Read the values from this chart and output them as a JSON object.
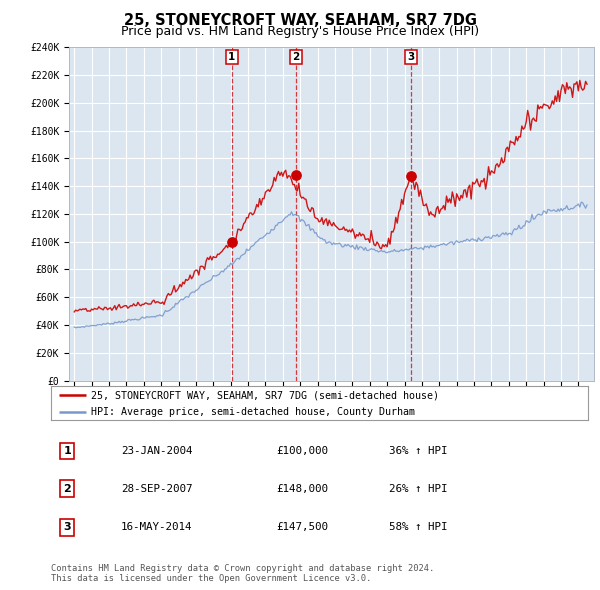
{
  "title": "25, STONEYCROFT WAY, SEAHAM, SR7 7DG",
  "subtitle": "Price paid vs. HM Land Registry's House Price Index (HPI)",
  "plot_bg_color": "#dce6f0",
  "ylim": [
    0,
    240000
  ],
  "yticks": [
    0,
    20000,
    40000,
    60000,
    80000,
    100000,
    120000,
    140000,
    160000,
    180000,
    200000,
    220000,
    240000
  ],
  "red_color": "#cc0000",
  "blue_color": "#7799cc",
  "sale_dates": [
    2004.07,
    2007.75,
    2014.38
  ],
  "sale_prices": [
    100000,
    148000,
    147500
  ],
  "sale_labels": [
    "1",
    "2",
    "3"
  ],
  "legend_line1": "25, STONEYCROFT WAY, SEAHAM, SR7 7DG (semi-detached house)",
  "legend_line2": "HPI: Average price, semi-detached house, County Durham",
  "table_rows": [
    [
      "1",
      "23-JAN-2004",
      "£100,000",
      "36% ↑ HPI"
    ],
    [
      "2",
      "28-SEP-2007",
      "£148,000",
      "26% ↑ HPI"
    ],
    [
      "3",
      "16-MAY-2014",
      "£147,500",
      "58% ↑ HPI"
    ]
  ],
  "footnote": "Contains HM Land Registry data © Crown copyright and database right 2024.\nThis data is licensed under the Open Government Licence v3.0.",
  "title_fontsize": 10.5,
  "subtitle_fontsize": 9,
  "tick_fontsize": 7,
  "xlim_min": 1994.7,
  "xlim_max": 2024.9
}
